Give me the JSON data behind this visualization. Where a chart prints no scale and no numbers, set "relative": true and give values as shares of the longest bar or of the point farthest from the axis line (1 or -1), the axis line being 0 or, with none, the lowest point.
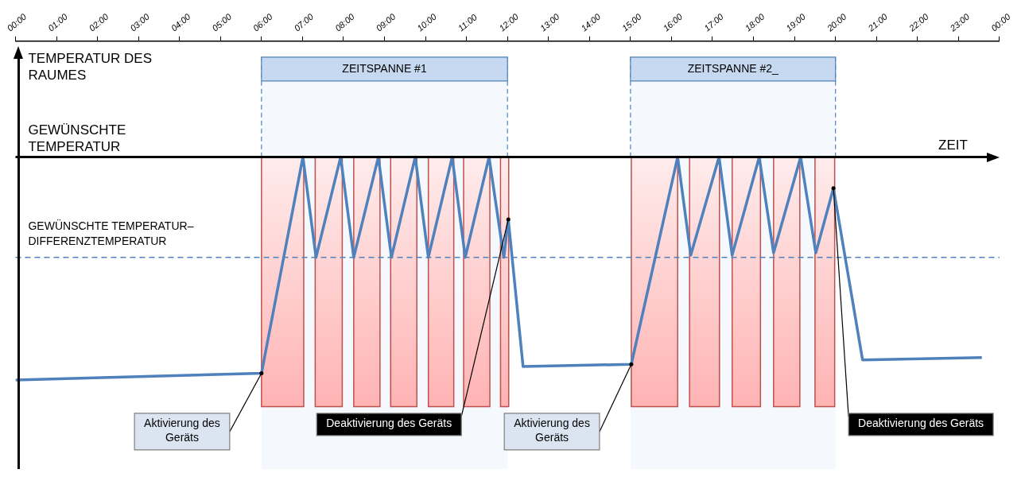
{
  "chart_data": {
    "type": "line",
    "ylabel": "TEMPERATUR DES RAUMES",
    "xlabel": "ZEIT",
    "relative": true,
    "x": [
      0,
      6.0,
      7.01,
      7.33,
      7.93,
      8.25,
      8.85,
      9.17,
      9.75,
      10.07,
      10.65,
      10.97,
      11.55,
      11.91,
      12.02,
      12.38,
      15.02,
      16.15,
      16.47,
      17.16,
      17.48,
      18.14,
      18.49,
      19.15,
      19.52,
      19.95,
      20.66,
      23.57
    ],
    "series": [
      {
        "color": "#4f81bd",
        "values": [
          -1,
          -0.97,
          0,
          -0.45,
          0,
          -0.45,
          0,
          -0.45,
          0,
          -0.45,
          0,
          -0.45,
          0,
          -0.45,
          -0.28,
          -0.94,
          -0.93,
          0,
          -0.44,
          0,
          -0.44,
          0,
          -0.43,
          0,
          -0.43,
          -0.14,
          -0.91,
          -0.9
        ]
      }
    ],
    "xlim": [
      0,
      24
    ],
    "xticks": [
      {
        "value": 0,
        "label": "00:00"
      },
      {
        "value": 1,
        "label": "01:00"
      },
      {
        "value": 2,
        "label": "02:00"
      },
      {
        "value": 3,
        "label": "03:00"
      },
      {
        "value": 4,
        "label": "04:00"
      },
      {
        "value": 5,
        "label": "05:00"
      },
      {
        "value": 6,
        "label": "06:00"
      },
      {
        "value": 7,
        "label": "07:00"
      },
      {
        "value": 8,
        "label": "08:00"
      },
      {
        "value": 9,
        "label": "09:00"
      },
      {
        "value": 10,
        "label": "10:00"
      },
      {
        "value": 11,
        "label": "11:00"
      },
      {
        "value": 12,
        "label": "12:00"
      },
      {
        "value": 13,
        "label": "13:00"
      },
      {
        "value": 14,
        "label": "14:00"
      },
      {
        "value": 15,
        "label": "15:00"
      },
      {
        "value": 16,
        "label": "16:00"
      },
      {
        "value": 17,
        "label": "17:00"
      },
      {
        "value": 18,
        "label": "18:00"
      },
      {
        "value": 19,
        "label": "19:00"
      },
      {
        "value": 20,
        "label": "20:00"
      },
      {
        "value": 21,
        "label": "21:00"
      },
      {
        "value": 22,
        "label": "22:00"
      },
      {
        "value": 23,
        "label": "23:00"
      },
      {
        "value": 24,
        "label": "00:00"
      }
    ],
    "ref_lines": [
      {
        "axis": "y",
        "value": -0.45,
        "label": "GEWÜNSCHTE TEMPERATUR–DIFFERENZTEMPERATUR",
        "color": "#4f81bd",
        "line_style": "dashed"
      }
    ],
    "bands": [
      {
        "axis": "x",
        "from": 6,
        "to": 12,
        "label": "ZEITSPANNE #1",
        "color": "#c6d9f1"
      },
      {
        "axis": "x",
        "from": 15,
        "to": 20,
        "label": "ZEITSPANNE #2_",
        "color": "#c6d9f1"
      },
      {
        "axis": "x",
        "from": 6.0,
        "to": 7.03,
        "color": "#ffb3b3"
      },
      {
        "axis": "x",
        "from": 7.31,
        "to": 7.97,
        "color": "#ffb3b3"
      },
      {
        "axis": "x",
        "from": 8.25,
        "to": 8.89,
        "color": "#ffb3b3"
      },
      {
        "axis": "x",
        "from": 9.15,
        "to": 9.79,
        "color": "#ffb3b3"
      },
      {
        "axis": "x",
        "from": 10.07,
        "to": 10.69,
        "color": "#ffb3b3"
      },
      {
        "axis": "x",
        "from": 10.93,
        "to": 11.57,
        "color": "#ffb3b3"
      },
      {
        "axis": "x",
        "from": 11.83,
        "to": 12.03,
        "color": "#ffb3b3"
      },
      {
        "axis": "x",
        "from": 15.02,
        "to": 16.15,
        "color": "#ffb3b3"
      },
      {
        "axis": "x",
        "from": 16.44,
        "to": 17.17,
        "color": "#ffb3b3"
      },
      {
        "axis": "x",
        "from": 17.48,
        "to": 18.17,
        "color": "#ffb3b3"
      },
      {
        "axis": "x",
        "from": 18.49,
        "to": 19.13,
        "color": "#ffb3b3"
      },
      {
        "axis": "x",
        "from": 19.5,
        "to": 19.98,
        "color": "#ffb3b3"
      }
    ],
    "annotations": [
      "GEWÜNSCHTE TEMPERATUR",
      {
        "text": "Aktivierung des Geräts",
        "x": 6.0,
        "y": -0.97
      },
      {
        "text": "Deaktivierung des Geräts",
        "x": 12.02,
        "y": -0.28
      },
      {
        "text": "Aktivierung des Geräts",
        "x": 15.02,
        "y": -0.93
      },
      {
        "text": "Deaktivierung des Geräts",
        "x": 19.95,
        "y": -0.14
      }
    ]
  }
}
